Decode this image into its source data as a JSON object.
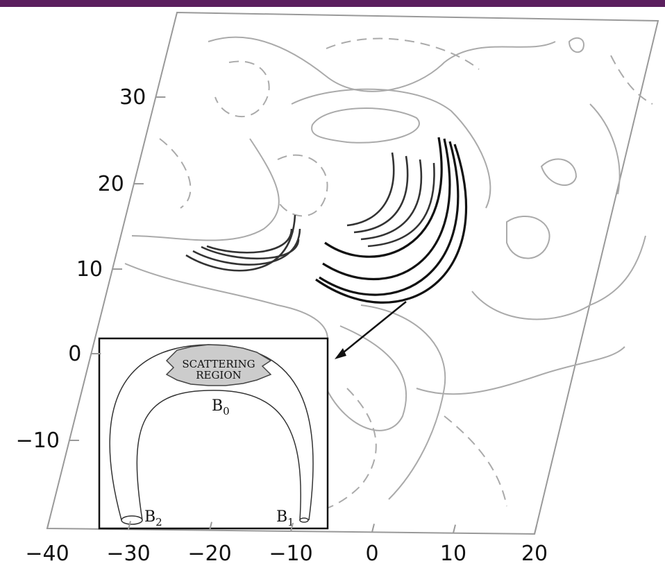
{
  "axes": {
    "y_ticks": [
      "30",
      "20",
      "10",
      "0",
      "−10"
    ],
    "x_ticks": [
      "−40",
      "−30",
      "−20",
      "−10",
      "0",
      "10",
      "20"
    ]
  },
  "inset": {
    "region_label": [
      "SCATTERING",
      "REGION"
    ],
    "points": [
      {
        "base": "B",
        "sub": "0"
      },
      {
        "base": "B",
        "sub": "1"
      },
      {
        "base": "B",
        "sub": "2"
      }
    ]
  }
}
